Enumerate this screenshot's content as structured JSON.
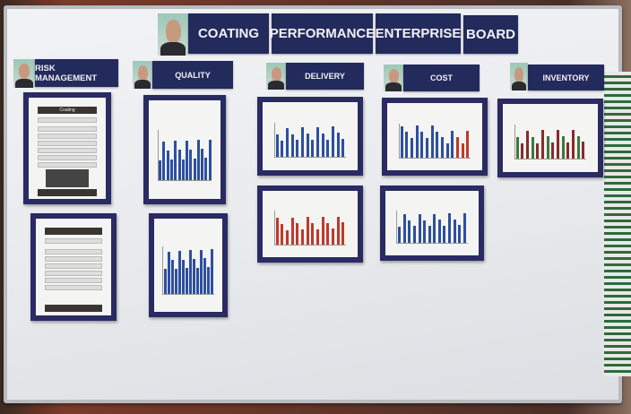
{
  "board": {
    "title_words": [
      "COATING",
      "PERFORMANCE",
      "ENTERPRISE",
      "BOARD"
    ],
    "sections": [
      {
        "label": "RISK MANAGEMENT"
      },
      {
        "label": "QUALITY"
      },
      {
        "label": "DELIVERY"
      },
      {
        "label": "COST"
      },
      {
        "label": "INVENTORY"
      }
    ],
    "risk_sheet_title": "Coating"
  }
}
